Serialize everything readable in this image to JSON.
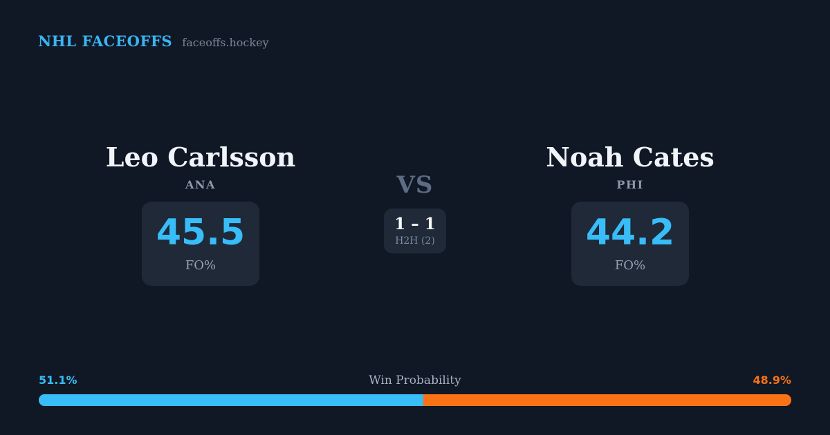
{
  "colors": {
    "background": "#101826",
    "card": "#1f2937",
    "accent_blue": "#38bdf8",
    "accent_orange": "#f97316"
  },
  "header": {
    "title": "NHL FACEOFFS",
    "site": "faceoffs.hockey"
  },
  "matchup": {
    "vs_label": "VS",
    "h2h": {
      "score": "1 – 1",
      "label": "H2H (2)"
    },
    "players": [
      {
        "name": "Leo Carlsson",
        "team": "ANA",
        "stat_value": "45.5",
        "stat_label": "FO%"
      },
      {
        "name": "Noah Cates",
        "team": "PHI",
        "stat_value": "44.2",
        "stat_label": "FO%"
      }
    ]
  },
  "win_probability": {
    "label": "Win Probability",
    "left_pct_text": "51.1%",
    "right_pct_text": "48.9%",
    "left_value": 51.1,
    "right_value": 48.9
  }
}
